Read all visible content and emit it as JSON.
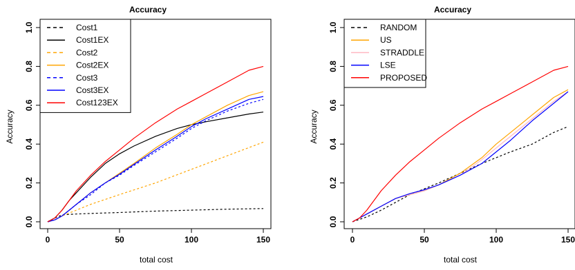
{
  "chart_data": [
    {
      "type": "line",
      "title": "Accuracy",
      "xlabel": "total cost",
      "ylabel": "Accuracy",
      "xlim": [
        0,
        150
      ],
      "ylim": [
        0.0,
        1.0
      ],
      "xticks": [
        "0",
        "50",
        "100",
        "150"
      ],
      "yticks": [
        "0.0",
        "0.2",
        "0.4",
        "0.6",
        "0.8",
        "1.0"
      ],
      "legend_position": "top-left",
      "series": [
        {
          "name": "Cost1",
          "color": "#000000",
          "dashed": true,
          "x": [
            0,
            5,
            10,
            15,
            20,
            30,
            50,
            75,
            100,
            125,
            150
          ],
          "y": [
            0.0,
            0.02,
            0.035,
            0.038,
            0.04,
            0.043,
            0.048,
            0.055,
            0.06,
            0.065,
            0.068
          ]
        },
        {
          "name": "Cost1EX",
          "color": "#000000",
          "dashed": false,
          "x": [
            0,
            5,
            10,
            15,
            20,
            30,
            40,
            50,
            60,
            75,
            90,
            100,
            110,
            125,
            140,
            150
          ],
          "y": [
            0.0,
            0.02,
            0.06,
            0.11,
            0.15,
            0.23,
            0.3,
            0.35,
            0.39,
            0.44,
            0.48,
            0.5,
            0.515,
            0.535,
            0.555,
            0.565
          ]
        },
        {
          "name": "Cost2",
          "color": "#ffa500",
          "dashed": true,
          "x": [
            0,
            5,
            10,
            20,
            30,
            50,
            75,
            100,
            125,
            150
          ],
          "y": [
            0.0,
            0.01,
            0.03,
            0.06,
            0.09,
            0.14,
            0.2,
            0.27,
            0.34,
            0.41
          ]
        },
        {
          "name": "Cost2EX",
          "color": "#ffa500",
          "dashed": false,
          "x": [
            0,
            5,
            10,
            15,
            20,
            30,
            40,
            50,
            60,
            75,
            90,
            100,
            110,
            125,
            140,
            150
          ],
          "y": [
            0.0,
            0.01,
            0.03,
            0.06,
            0.09,
            0.15,
            0.2,
            0.25,
            0.3,
            0.38,
            0.45,
            0.5,
            0.54,
            0.6,
            0.65,
            0.67
          ]
        },
        {
          "name": "Cost3",
          "color": "#0000ff",
          "dashed": true,
          "x": [
            0,
            5,
            10,
            15,
            20,
            30,
            40,
            50,
            60,
            75,
            90,
            100,
            110,
            125,
            140,
            150
          ],
          "y": [
            0.0,
            0.01,
            0.03,
            0.06,
            0.09,
            0.14,
            0.2,
            0.24,
            0.29,
            0.36,
            0.43,
            0.48,
            0.52,
            0.57,
            0.61,
            0.63
          ]
        },
        {
          "name": "Cost3EX",
          "color": "#0000ff",
          "dashed": false,
          "x": [
            0,
            5,
            10,
            15,
            20,
            30,
            40,
            50,
            60,
            75,
            90,
            100,
            110,
            125,
            140,
            150
          ],
          "y": [
            0.0,
            0.01,
            0.03,
            0.06,
            0.09,
            0.15,
            0.2,
            0.245,
            0.295,
            0.37,
            0.44,
            0.49,
            0.53,
            0.58,
            0.63,
            0.645
          ]
        },
        {
          "name": "Cost123EX",
          "color": "#ff0000",
          "dashed": false,
          "x": [
            0,
            5,
            10,
            15,
            20,
            30,
            40,
            50,
            60,
            75,
            90,
            100,
            110,
            125,
            140,
            150
          ],
          "y": [
            0.0,
            0.02,
            0.06,
            0.11,
            0.16,
            0.24,
            0.31,
            0.37,
            0.43,
            0.51,
            0.58,
            0.62,
            0.66,
            0.72,
            0.78,
            0.8
          ]
        }
      ]
    },
    {
      "type": "line",
      "title": "Accuracy",
      "xlabel": "total cost",
      "ylabel": "Accuracy",
      "xlim": [
        0,
        150
      ],
      "ylim": [
        0.0,
        1.0
      ],
      "xticks": [
        "0",
        "50",
        "100",
        "150"
      ],
      "yticks": [
        "0.0",
        "0.2",
        "0.4",
        "0.6",
        "0.8",
        "1.0"
      ],
      "legend_position": "top-left",
      "series": [
        {
          "name": "RANDOM",
          "color": "#000000",
          "dashed": true,
          "x": [
            0,
            10,
            20,
            30,
            40,
            50,
            60,
            75,
            90,
            100,
            110,
            125,
            140,
            150
          ],
          "y": [
            0.0,
            0.025,
            0.06,
            0.1,
            0.14,
            0.17,
            0.2,
            0.25,
            0.3,
            0.33,
            0.36,
            0.4,
            0.46,
            0.49
          ]
        },
        {
          "name": "US",
          "color": "#ffa500",
          "dashed": false,
          "x": [
            0,
            5,
            10,
            20,
            30,
            40,
            50,
            60,
            75,
            90,
            100,
            110,
            125,
            140,
            150
          ],
          "y": [
            0.0,
            0.02,
            0.04,
            0.08,
            0.12,
            0.14,
            0.16,
            0.19,
            0.25,
            0.33,
            0.4,
            0.46,
            0.55,
            0.64,
            0.68
          ]
        },
        {
          "name": "STRADDLE",
          "color": "#ffb6c1",
          "dashed": false,
          "x": [
            0,
            5,
            10,
            20,
            30,
            40,
            50,
            60,
            75,
            90,
            100,
            110,
            125,
            140,
            150
          ],
          "y": [
            0.0,
            0.02,
            0.04,
            0.08,
            0.12,
            0.14,
            0.16,
            0.19,
            0.24,
            0.32,
            0.38,
            0.44,
            0.53,
            0.62,
            0.67
          ]
        },
        {
          "name": "LSE",
          "color": "#0000ff",
          "dashed": false,
          "x": [
            0,
            5,
            10,
            20,
            30,
            40,
            50,
            60,
            75,
            90,
            100,
            110,
            125,
            140,
            150
          ],
          "y": [
            0.0,
            0.02,
            0.04,
            0.08,
            0.12,
            0.145,
            0.165,
            0.19,
            0.24,
            0.3,
            0.36,
            0.42,
            0.52,
            0.61,
            0.67
          ]
        },
        {
          "name": "PROPOSED",
          "color": "#ff0000",
          "dashed": false,
          "x": [
            0,
            5,
            10,
            15,
            20,
            30,
            40,
            50,
            60,
            75,
            90,
            100,
            110,
            125,
            140,
            150
          ],
          "y": [
            0.0,
            0.02,
            0.06,
            0.11,
            0.16,
            0.24,
            0.31,
            0.37,
            0.43,
            0.51,
            0.58,
            0.62,
            0.66,
            0.72,
            0.78,
            0.8
          ]
        }
      ]
    }
  ]
}
